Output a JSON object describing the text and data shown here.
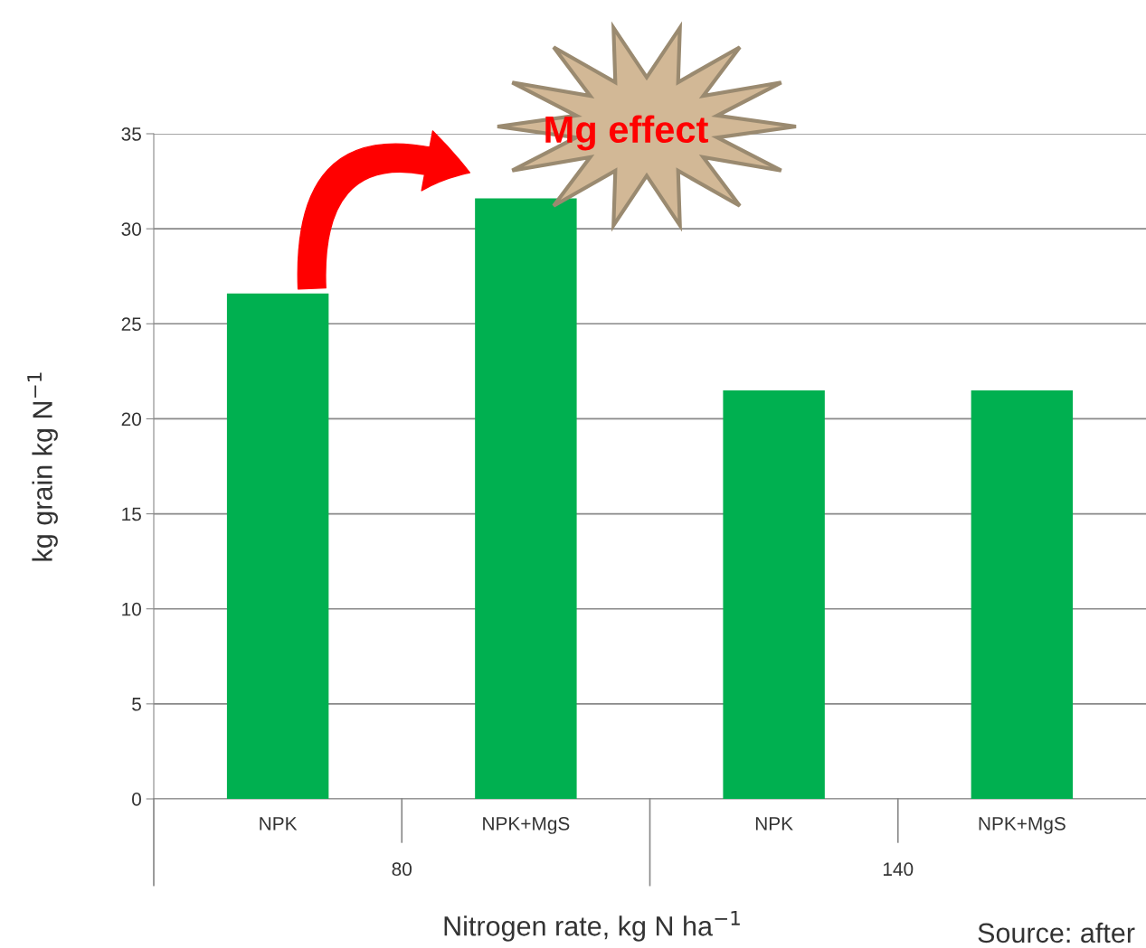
{
  "chart_data": {
    "type": "bar",
    "categories": [
      "NPK",
      "NPK+MgS",
      "NPK",
      "NPK+MgS"
    ],
    "values": [
      26.6,
      31.6,
      21.5,
      21.5
    ],
    "color": "#00b050",
    "ylim": [
      0,
      35
    ],
    "yticks": [
      0,
      5,
      10,
      15,
      20,
      25,
      30,
      35
    ],
    "grid": "y",
    "xlabel": "Nitrogen rate, kg N ha$^{−1}$",
    "ylabel": "kg grain kg N$^{−1}$",
    "annotations": [
      "80",
      "140",
      "Mg effect",
      "Source: after"
    ]
  }
}
